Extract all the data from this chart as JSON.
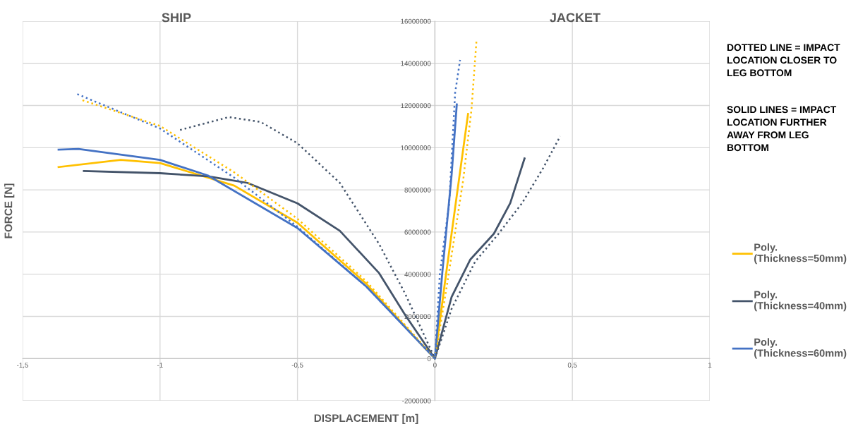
{
  "chart_data": {
    "type": "line",
    "xlabel": "DISPLACEMENT [m]",
    "ylabel": "FORCE [N]",
    "annotations": [
      "SHIP",
      "JACKET",
      "DOTTED LINE = IMPACT\nLOCATION CLOSER TO\nLEG BOTTOM",
      "SOLID LINES = IMPACT\nLOCATION FURTHER\nAWAY FROM LEG\nBOTTOM"
    ],
    "xlim": [
      -1.5,
      1
    ],
    "ylim": [
      -2000000,
      16000000
    ],
    "xticks": [
      {
        "value": -1.5,
        "label": "-1,5"
      },
      -1,
      {
        "value": -0.5,
        "label": "-0,5"
      },
      0,
      {
        "value": 0.5,
        "label": "0,5"
      },
      1
    ],
    "yticks": [
      -2000000,
      0,
      2000000,
      4000000,
      6000000,
      8000000,
      10000000,
      12000000,
      14000000,
      16000000
    ],
    "grid": true,
    "legend": "right",
    "marker": "none",
    "series": [
      {
        "name": "Poly.\n(Thickness=50mm)",
        "color": "#ffc000",
        "line_style": "solid",
        "x": [
          -1.369,
          -1.143,
          -1.0,
          -0.73,
          -0.5,
          -0.25,
          -0.039,
          0,
          0.035,
          0.078,
          0.1205
        ],
        "values": [
          9080000,
          9420000,
          9270000,
          8200000,
          6440000,
          3550000,
          530000,
          0,
          3470000,
          7590000,
          11600000
        ]
      },
      {
        "name": "Poly.\n(Thickness=40mm)",
        "color": "#44546a",
        "line_style": "solid",
        "x": [
          -1.277,
          -1.0,
          -0.826,
          -0.682,
          -0.5,
          -0.346,
          -0.203,
          -0.107,
          0,
          0.0607,
          0.129,
          0.2145,
          0.274,
          0.326
        ],
        "values": [
          8890000,
          8790000,
          8640000,
          8330000,
          7360000,
          6060000,
          4050000,
          2040000,
          0,
          2920000,
          4700000,
          5920000,
          7370000,
          9490000
        ]
      },
      {
        "name": "Poly.\n(Thickness=60mm)",
        "color": "#4472c4",
        "line_style": "solid",
        "x": [
          -1.369,
          -1.297,
          -1.0,
          -0.826,
          -0.5,
          -0.25,
          0,
          0.0265,
          0.0607,
          0.0795
        ],
        "values": [
          9910000,
          9940000,
          9420000,
          8680000,
          6190000,
          3420000,
          0,
          4030000,
          8710000,
          12050000
        ]
      },
      {
        "color": "#ffc000",
        "line_style": "dotted",
        "x": [
          -1.282,
          -1.0,
          -0.73,
          -0.5,
          -0.25,
          0,
          0.0436,
          0.103,
          0.133,
          0.151
        ],
        "values": [
          12250000,
          11030000,
          8830000,
          6630000,
          3670000,
          0,
          3470000,
          8480000,
          11820000,
          15050000
        ]
      },
      {
        "color": "#44546a",
        "line_style": "dotted",
        "x": [
          -0.927,
          -0.75,
          -0.634,
          -0.5,
          -0.346,
          -0.203,
          -0.107,
          0,
          0.0607,
          0.146,
          0.2316,
          0.317,
          0.394,
          0.4556
        ],
        "values": [
          10840000,
          11450000,
          11220000,
          10210000,
          8330000,
          5430000,
          3040000,
          0,
          2360000,
          4590000,
          5920000,
          7370000,
          9040000,
          10540000
        ]
      },
      {
        "color": "#4472c4",
        "line_style": "dotted",
        "x": [
          -1.301,
          -1.0,
          -0.73,
          -0.5,
          -0.25,
          0,
          0.018,
          0.052,
          0.0735,
          0.0915
        ],
        "values": [
          12540000,
          10910000,
          8580000,
          6250000,
          3420000,
          0,
          4030000,
          7370000,
          12600000,
          14160000
        ]
      }
    ]
  }
}
